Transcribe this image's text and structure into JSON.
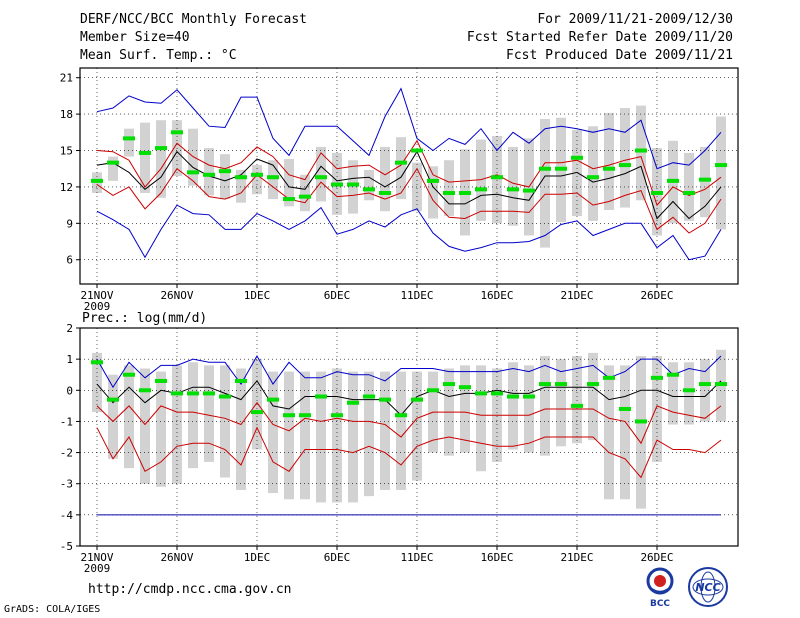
{
  "header": {
    "title": "DERF/NCC/BCC Monthly Forecast",
    "member_size": "Member Size=40",
    "variable": "Mean Surf. Temp.: °C",
    "period": "For 2009/11/21-2009/12/30",
    "fcst_started": "Fcst Started Refer Date 2009/11/20",
    "fcst_produced": "Fcst Produced Date 2009/11/21"
  },
  "footer": {
    "url": "http://cmdp.ncc.cma.gov.cn",
    "credit": "GrADS: COLA/IGES",
    "logo_bcc": "BCC",
    "logo_ncc": "NCC"
  },
  "colors": {
    "box": "#d2d2d2",
    "obs": "#00e000",
    "envelope": "#0000cc",
    "spread": "#cc0000",
    "mean": "#000000",
    "grid": "#000000"
  },
  "chart_data": [
    {
      "type": "box-line",
      "title": "Mean Surf. Temp.: °C",
      "x": [
        1,
        2,
        3,
        4,
        5,
        6,
        7,
        8,
        9,
        10,
        11,
        12,
        13,
        14,
        15,
        16,
        17,
        18,
        19,
        20,
        21,
        22,
        23,
        24,
        25,
        26,
        27,
        28,
        29,
        30,
        31,
        32,
        33,
        34,
        35,
        36,
        37,
        38,
        39,
        40
      ],
      "xtick_labels": [
        "21NOV",
        "26NOV",
        "1DEC",
        "6DEC",
        "11DEC",
        "16DEC",
        "21DEC",
        "26DEC"
      ],
      "xtick_positions": [
        1,
        6,
        11,
        16,
        21,
        26,
        31,
        36
      ],
      "year_label": "2009",
      "ylim": [
        4,
        21.8
      ],
      "yticks": [
        6,
        9,
        12,
        15,
        18,
        21
      ],
      "max": [
        18.2,
        18.5,
        19.5,
        19.0,
        18.9,
        20.0,
        18.5,
        17.0,
        16.9,
        19.4,
        19.4,
        16.0,
        14.6,
        17.0,
        17.0,
        17.0,
        15.8,
        14.6,
        17.8,
        20.1,
        16.0,
        15.0,
        16.0,
        15.5,
        16.8,
        15.0,
        16.5,
        15.6,
        16.8,
        17.0,
        16.8,
        16.5,
        16.8,
        16.5,
        17.5,
        13.5,
        14.0,
        13.8,
        15.0,
        16.5
      ],
      "upper": [
        15.0,
        14.9,
        14.2,
        12.0,
        13.5,
        15.6,
        14.5,
        13.8,
        13.5,
        14.0,
        15.3,
        14.5,
        13.0,
        12.6,
        14.8,
        13.5,
        13.7,
        13.8,
        13.0,
        13.8,
        15.8,
        13.0,
        12.4,
        12.5,
        12.6,
        13.0,
        12.3,
        12.0,
        14.0,
        14.0,
        14.2,
        13.5,
        13.8,
        14.2,
        14.5,
        10.5,
        12.0,
        11.3,
        11.8,
        12.8
      ],
      "mean": [
        13.8,
        14.0,
        13.2,
        11.8,
        12.8,
        14.9,
        13.6,
        12.9,
        12.5,
        13.0,
        14.3,
        13.8,
        12.0,
        11.8,
        13.7,
        12.5,
        12.7,
        12.8,
        12.0,
        12.8,
        14.9,
        12.0,
        10.6,
        10.6,
        11.3,
        11.4,
        11.1,
        10.9,
        12.9,
        12.9,
        13.2,
        12.4,
        12.7,
        13.1,
        13.7,
        9.4,
        10.8,
        9.4,
        10.4,
        12.0
      ],
      "lower": [
        12.2,
        11.3,
        12.0,
        10.2,
        11.5,
        13.5,
        12.5,
        11.2,
        11.0,
        11.5,
        13.0,
        12.0,
        11.0,
        10.7,
        12.4,
        11.2,
        11.3,
        11.5,
        11.0,
        11.5,
        13.5,
        10.9,
        9.5,
        9.4,
        10.0,
        10.0,
        10.0,
        9.9,
        11.4,
        11.4,
        11.5,
        10.5,
        10.8,
        11.3,
        11.7,
        8.5,
        9.5,
        8.2,
        9.0,
        11.0
      ],
      "min": [
        10.0,
        9.3,
        8.5,
        6.2,
        8.5,
        10.5,
        9.8,
        9.7,
        8.5,
        8.5,
        9.8,
        9.2,
        8.5,
        9.2,
        10.3,
        8.1,
        8.5,
        9.2,
        8.7,
        9.7,
        10.2,
        8.2,
        7.1,
        6.7,
        7.0,
        7.4,
        7.4,
        7.5,
        8.0,
        8.9,
        9.2,
        8.0,
        8.5,
        9.0,
        9.0,
        7.0,
        8.0,
        6.0,
        6.3,
        8.5
      ],
      "box_top": [
        13.2,
        14.5,
        16.8,
        17.3,
        17.5,
        17.5,
        16.8,
        15.2,
        14.7,
        13.4,
        13.8,
        14.2,
        14.3,
        13.0,
        15.3,
        14.8,
        14.2,
        13.4,
        15.3,
        16.1,
        14.0,
        13.7,
        14.2,
        15.1,
        15.9,
        16.2,
        15.3,
        16.0,
        17.6,
        17.7,
        16.7,
        17.0,
        18.1,
        18.5,
        18.7,
        15.2,
        15.8,
        14.8,
        15.3,
        17.8
      ],
      "box_bottom": [
        11.5,
        12.5,
        14.5,
        11.5,
        11.1,
        12.9,
        12.1,
        11.3,
        11.0,
        10.7,
        11.4,
        11.0,
        10.4,
        10.0,
        10.8,
        9.7,
        9.8,
        10.9,
        10.0,
        11.0,
        10.0,
        9.4,
        9.6,
        8.0,
        9.2,
        9.0,
        8.8,
        8.0,
        7.0,
        9.1,
        9.6,
        9.2,
        10.1,
        10.3,
        10.9,
        8.0,
        9.0,
        9.2,
        9.5,
        8.5
      ],
      "obs": [
        12.5,
        14.0,
        16.0,
        14.8,
        15.2,
        16.5,
        13.2,
        13.0,
        13.3,
        12.8,
        13.0,
        12.8,
        11.0,
        11.2,
        12.8,
        12.2,
        12.2,
        11.8,
        11.5,
        14.0,
        15.0,
        12.5,
        11.5,
        11.5,
        11.8,
        12.8,
        11.8,
        11.7,
        13.5,
        13.5,
        14.4,
        12.8,
        13.5,
        13.8,
        15.0,
        11.5,
        12.5,
        11.5,
        12.6,
        13.8
      ]
    },
    {
      "type": "box-line",
      "title": "Prec.: log(mm/d)",
      "x": [
        1,
        2,
        3,
        4,
        5,
        6,
        7,
        8,
        9,
        10,
        11,
        12,
        13,
        14,
        15,
        16,
        17,
        18,
        19,
        20,
        21,
        22,
        23,
        24,
        25,
        26,
        27,
        28,
        29,
        30,
        31,
        32,
        33,
        34,
        35,
        36,
        37,
        38,
        39,
        40
      ],
      "xtick_labels": [
        "21NOV",
        "26NOV",
        "1DEC",
        "6DEC",
        "11DEC",
        "16DEC",
        "21DEC",
        "26DEC"
      ],
      "xtick_positions": [
        1,
        6,
        11,
        16,
        21,
        26,
        31,
        36
      ],
      "year_label": "2009",
      "ylim": [
        -5,
        2
      ],
      "yticks": [
        -5,
        -4,
        -3,
        -2,
        -1,
        0,
        1,
        2
      ],
      "floor_line": -4,
      "max": [
        1.0,
        0.1,
        0.9,
        0.4,
        0.8,
        0.8,
        1.0,
        0.9,
        0.9,
        0.2,
        1.1,
        0.2,
        0.9,
        0.4,
        0.4,
        0.6,
        0.5,
        0.5,
        0.3,
        0.7,
        0.7,
        0.7,
        0.6,
        0.6,
        0.6,
        0.6,
        0.7,
        0.6,
        0.8,
        0.6,
        0.7,
        0.8,
        0.4,
        0.6,
        1.0,
        1.0,
        0.5,
        0.7,
        0.6,
        1.1
      ],
      "mean": [
        0.2,
        -0.4,
        0.1,
        -0.4,
        0.0,
        -0.1,
        0.1,
        0.1,
        -0.1,
        -0.3,
        0.3,
        -0.5,
        -0.6,
        -0.2,
        -0.2,
        -0.2,
        -0.3,
        -0.3,
        -0.3,
        -0.8,
        -0.2,
        0.0,
        -0.2,
        -0.1,
        -0.1,
        0.0,
        -0.1,
        -0.1,
        0.1,
        0.1,
        0.1,
        0.1,
        -0.3,
        -0.2,
        0.0,
        0.0,
        -0.2,
        -0.2,
        -0.2,
        0.3
      ],
      "upper": [
        -0.5,
        -1.0,
        -0.5,
        -1.1,
        -0.5,
        -0.7,
        -0.7,
        -0.8,
        -0.9,
        -1.1,
        -0.4,
        -1.1,
        -1.3,
        -0.9,
        -1.0,
        -0.9,
        -1.0,
        -1.0,
        -1.1,
        -1.5,
        -0.9,
        -0.7,
        -0.7,
        -0.7,
        -0.8,
        -0.8,
        -0.8,
        -0.8,
        -0.6,
        -0.6,
        -0.6,
        -0.6,
        -0.9,
        -1.0,
        -1.7,
        -0.5,
        -0.7,
        -0.8,
        -0.9,
        -0.5
      ],
      "lower": [
        -1.2,
        -2.2,
        -1.5,
        -2.6,
        -2.3,
        -1.8,
        -1.7,
        -1.7,
        -1.9,
        -2.4,
        -1.2,
        -2.3,
        -2.6,
        -1.9,
        -1.9,
        -1.9,
        -2.0,
        -1.8,
        -2.0,
        -2.4,
        -1.8,
        -1.6,
        -1.5,
        -1.6,
        -1.7,
        -1.8,
        -1.8,
        -1.7,
        -1.5,
        -1.5,
        -1.5,
        -1.5,
        -2.0,
        -2.2,
        -2.8,
        -1.6,
        -1.9,
        -1.9,
        -2.0,
        -1.6
      ],
      "box_top": [
        1.2,
        0.5,
        0.8,
        0.7,
        0.6,
        0.8,
        0.9,
        0.8,
        0.8,
        0.7,
        1.0,
        0.6,
        0.6,
        0.6,
        0.6,
        0.7,
        0.6,
        0.6,
        0.6,
        0.6,
        0.6,
        0.6,
        0.7,
        0.8,
        0.8,
        0.7,
        0.9,
        0.8,
        1.1,
        1.0,
        1.1,
        1.2,
        0.8,
        0.8,
        1.1,
        1.1,
        0.9,
        0.9,
        1.0,
        1.3
      ],
      "box_bottom": [
        -0.7,
        -2.2,
        -2.5,
        -3.0,
        -3.1,
        -3.0,
        -2.5,
        -2.3,
        -2.8,
        -3.2,
        -1.9,
        -3.3,
        -3.5,
        -3.5,
        -3.6,
        -3.6,
        -3.6,
        -3.4,
        -3.2,
        -3.2,
        -2.9,
        -2.0,
        -2.1,
        -2.0,
        -2.6,
        -2.3,
        -1.9,
        -2.0,
        -2.1,
        -1.8,
        -1.7,
        -1.6,
        -3.5,
        -3.5,
        -3.8,
        -2.3,
        -1.1,
        -1.1,
        -1.0,
        -1.0
      ],
      "obs": [
        0.9,
        -0.3,
        0.5,
        0.0,
        0.3,
        -0.1,
        -0.1,
        -0.1,
        -0.2,
        0.3,
        -0.7,
        -0.3,
        -0.8,
        -0.8,
        -0.2,
        -0.8,
        -0.4,
        -0.2,
        -0.3,
        -0.8,
        -0.3,
        0.0,
        0.2,
        0.1,
        -0.1,
        -0.1,
        -0.2,
        -0.2,
        0.2,
        0.2,
        -0.5,
        0.2,
        0.4,
        -0.6,
        -1.0,
        0.4,
        0.5,
        0.0,
        0.2,
        0.2
      ]
    }
  ]
}
